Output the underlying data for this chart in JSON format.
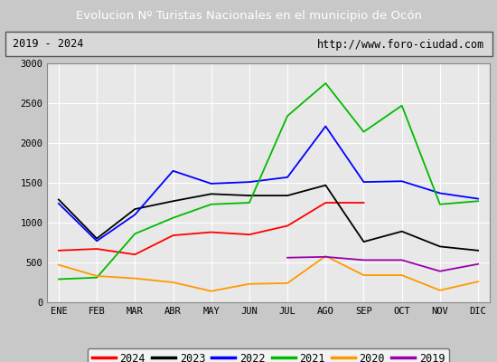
{
  "title": "Evolucion Nº Turistas Nacionales en el municipio de Ocón",
  "subtitle_left": "2019 - 2024",
  "subtitle_right": "http://www.foro-ciudad.com",
  "months": [
    "ENE",
    "FEB",
    "MAR",
    "ABR",
    "MAY",
    "JUN",
    "JUL",
    "AGO",
    "SEP",
    "OCT",
    "NOV",
    "DIC"
  ],
  "ylim": [
    0,
    3000
  ],
  "yticks": [
    0,
    500,
    1000,
    1500,
    2000,
    2500,
    3000
  ],
  "series": {
    "2024": {
      "color": "#ff0000",
      "values": [
        650,
        670,
        600,
        840,
        880,
        850,
        960,
        1250,
        1250,
        null,
        null,
        null
      ]
    },
    "2023": {
      "color": "#000000",
      "values": [
        1290,
        800,
        1170,
        1270,
        1360,
        1340,
        1340,
        1470,
        760,
        890,
        700,
        650
      ]
    },
    "2022": {
      "color": "#0000ff",
      "values": [
        1240,
        770,
        1100,
        1650,
        1490,
        1510,
        1570,
        2210,
        1510,
        1520,
        1370,
        1300
      ]
    },
    "2021": {
      "color": "#00bb00",
      "values": [
        290,
        310,
        860,
        1060,
        1230,
        1250,
        2340,
        2750,
        2140,
        2470,
        1230,
        1270
      ]
    },
    "2020": {
      "color": "#ff9900",
      "values": [
        470,
        330,
        300,
        250,
        140,
        230,
        240,
        580,
        340,
        340,
        150,
        260
      ]
    },
    "2019": {
      "color": "#9900aa",
      "values": [
        null,
        null,
        null,
        null,
        null,
        null,
        560,
        570,
        530,
        530,
        390,
        480
      ]
    }
  },
  "title_bg_color": "#4472c4",
  "title_color": "#ffffff",
  "plot_bg_color": "#e8e8e8",
  "grid_color": "#ffffff",
  "legend_order": [
    "2024",
    "2023",
    "2022",
    "2021",
    "2020",
    "2019"
  ],
  "fig_bg_color": "#c8c8c8"
}
